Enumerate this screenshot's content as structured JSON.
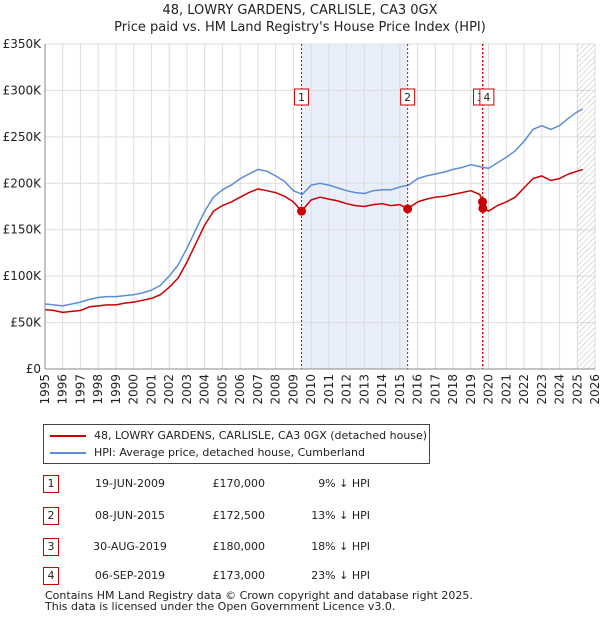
{
  "title_line1": "48, LOWRY GARDENS, CARLISLE, CA3 0GX",
  "title_line2": "Price paid vs. HM Land Registry's House Price Index (HPI)",
  "legend": {
    "property": "48, LOWRY GARDENS, CARLISLE, CA3 0GX (detached house)",
    "hpi": "HPI: Average price, detached house, Cumberland"
  },
  "colors": {
    "property": "#cc0000",
    "hpi": "#5b8ed6",
    "shade": "#e8eefa",
    "grid": "#dddddd",
    "marker_line": "#cc0000"
  },
  "sales": [
    {
      "num": "1",
      "date": "19-JUN-2009",
      "price": "£170,000",
      "hpi": "9% ↓ HPI"
    },
    {
      "num": "2",
      "date": "08-JUN-2015",
      "price": "£172,500",
      "hpi": "13% ↓ HPI"
    },
    {
      "num": "3",
      "date": "30-AUG-2019",
      "price": "£180,000",
      "hpi": "18% ↓ HPI"
    },
    {
      "num": "4",
      "date": "06-SEP-2019",
      "price": "£173,000",
      "hpi": "23% ↓ HPI"
    }
  ],
  "footer": {
    "line1": "Contains HM Land Registry data © Crown copyright and database right 2025.",
    "line2": "This data is licensed under the Open Government Licence v3.0."
  },
  "chart_data": {
    "type": "line",
    "title": "48, LOWRY GARDENS, CARLISLE, CA3 0GX — Price paid vs. HM Land Registry's House Price Index (HPI)",
    "xlabel": "",
    "ylabel": "",
    "xlim": [
      1995,
      2026
    ],
    "ylim": [
      0,
      350000
    ],
    "y_ticks": [
      {
        "value": 0,
        "label": "£0"
      },
      {
        "value": 50000,
        "label": "£50K"
      },
      {
        "value": 100000,
        "label": "£100K"
      },
      {
        "value": 150000,
        "label": "£150K"
      },
      {
        "value": 200000,
        "label": "£200K"
      },
      {
        "value": 250000,
        "label": "£250K"
      },
      {
        "value": 300000,
        "label": "£300K"
      },
      {
        "value": 350000,
        "label": "£350K"
      }
    ],
    "x_ticks": [
      "1995",
      "1996",
      "1997",
      "1998",
      "1999",
      "2000",
      "2001",
      "2002",
      "2003",
      "2004",
      "2005",
      "2006",
      "2007",
      "2008",
      "2009",
      "2010",
      "2011",
      "2012",
      "2013",
      "2014",
      "2015",
      "2016",
      "2017",
      "2018",
      "2019",
      "2020",
      "2021",
      "2022",
      "2023",
      "2024",
      "2025",
      "2026"
    ],
    "shaded_region": [
      2009.46,
      2015.44
    ],
    "hatched_from": 2025.0,
    "markers": [
      {
        "label": "1",
        "x": 2009.46,
        "y": 170000
      },
      {
        "label": "2",
        "x": 2015.44,
        "y": 172500
      },
      {
        "label": "3",
        "x": 2019.66,
        "y": 180000
      },
      {
        "label": "4",
        "x": 2019.68,
        "y": 173000
      }
    ],
    "series": [
      {
        "name": "48, LOWRY GARDENS, CARLISLE, CA3 0GX (detached house)",
        "color": "#cc0000",
        "x": [
          1995.0,
          1995.5,
          1996.0,
          1996.5,
          1997.0,
          1997.5,
          1998.0,
          1998.5,
          1999.0,
          1999.5,
          2000.0,
          2000.5,
          2001.0,
          2001.5,
          2002.0,
          2002.5,
          2003.0,
          2003.5,
          2004.0,
          2004.5,
          2005.0,
          2005.5,
          2006.0,
          2006.5,
          2007.0,
          2007.5,
          2008.0,
          2008.5,
          2009.0,
          2009.46,
          2010.0,
          2010.5,
          2011.0,
          2011.5,
          2012.0,
          2012.5,
          2013.0,
          2013.5,
          2014.0,
          2014.5,
          2015.0,
          2015.44,
          2016.0,
          2016.5,
          2017.0,
          2017.5,
          2018.0,
          2018.5,
          2019.0,
          2019.5,
          2019.66,
          2019.68,
          2020.0,
          2020.5,
          2021.0,
          2021.5,
          2022.0,
          2022.5,
          2023.0,
          2023.5,
          2024.0,
          2024.5,
          2025.0,
          2025.3
        ],
        "y": [
          64000,
          63000,
          61000,
          62000,
          63000,
          67000,
          68000,
          69000,
          69000,
          71000,
          72000,
          74000,
          76000,
          80000,
          88000,
          98000,
          115000,
          135000,
          155000,
          170000,
          176000,
          180000,
          185000,
          190000,
          194000,
          192000,
          190000,
          186000,
          180000,
          170000,
          182000,
          185000,
          183000,
          181000,
          178000,
          176000,
          175000,
          177000,
          178000,
          176000,
          177000,
          172500,
          180000,
          183000,
          185000,
          186000,
          188000,
          190000,
          192000,
          188000,
          180000,
          173000,
          170000,
          176000,
          180000,
          185000,
          195000,
          205000,
          208000,
          203000,
          205000,
          210000,
          213000,
          215000
        ]
      },
      {
        "name": "HPI: Average price, detached house, Cumberland",
        "color": "#5b8ed6",
        "x": [
          1995.0,
          1995.5,
          1996.0,
          1996.5,
          1997.0,
          1997.5,
          1998.0,
          1998.5,
          1999.0,
          1999.5,
          2000.0,
          2000.5,
          2001.0,
          2001.5,
          2002.0,
          2002.5,
          2003.0,
          2003.5,
          2004.0,
          2004.5,
          2005.0,
          2005.5,
          2006.0,
          2006.5,
          2007.0,
          2007.5,
          2008.0,
          2008.5,
          2009.0,
          2009.5,
          2010.0,
          2010.5,
          2011.0,
          2011.5,
          2012.0,
          2012.5,
          2013.0,
          2013.5,
          2014.0,
          2014.5,
          2015.0,
          2015.5,
          2016.0,
          2016.5,
          2017.0,
          2017.5,
          2018.0,
          2018.5,
          2019.0,
          2019.5,
          2020.0,
          2020.5,
          2021.0,
          2021.5,
          2022.0,
          2022.5,
          2023.0,
          2023.5,
          2024.0,
          2024.5,
          2025.0,
          2025.3
        ],
        "y": [
          70000,
          69000,
          68000,
          70000,
          72000,
          75000,
          77000,
          78000,
          78000,
          79000,
          80000,
          82000,
          85000,
          90000,
          100000,
          112000,
          130000,
          150000,
          170000,
          185000,
          193000,
          198000,
          205000,
          210000,
          215000,
          213000,
          208000,
          202000,
          192000,
          188000,
          198000,
          200000,
          198000,
          195000,
          192000,
          190000,
          189000,
          192000,
          193000,
          193000,
          196000,
          198000,
          205000,
          208000,
          210000,
          212000,
          215000,
          217000,
          220000,
          218000,
          216000,
          222000,
          228000,
          235000,
          245000,
          258000,
          262000,
          258000,
          262000,
          270000,
          277000,
          280000
        ]
      }
    ]
  }
}
